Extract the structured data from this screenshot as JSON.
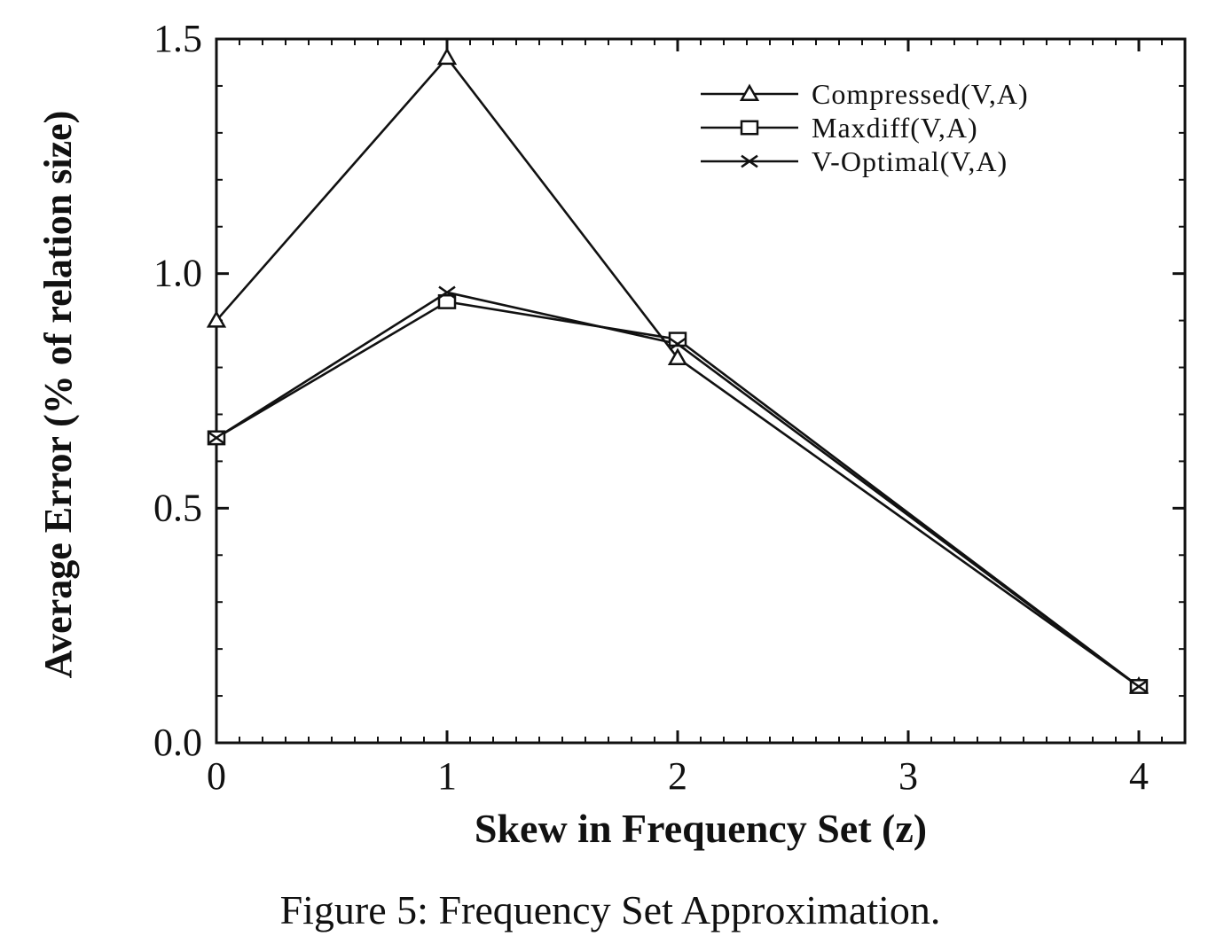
{
  "chart_data": {
    "type": "line",
    "x": [
      0,
      1,
      2,
      4
    ],
    "series": [
      {
        "name": "Compressed(V,A)",
        "marker": "triangle",
        "values": [
          0.9,
          1.46,
          0.82,
          0.12
        ]
      },
      {
        "name": "Maxdiff(V,A)",
        "marker": "square",
        "values": [
          0.65,
          0.94,
          0.86,
          0.12
        ]
      },
      {
        "name": "V-Optimal(V,A)",
        "marker": "x",
        "values": [
          0.65,
          0.96,
          0.85,
          0.12
        ]
      }
    ],
    "xlabel": "Skew in Frequency Set (z)",
    "ylabel": "Average Error (% of relation size)",
    "xlim": [
      0,
      4.2
    ],
    "ylim": [
      0,
      1.5
    ],
    "x_ticks": [
      0,
      1,
      2,
      3,
      4
    ],
    "x_tick_labels": [
      "0",
      "1",
      "2",
      "3",
      "4"
    ],
    "y_ticks": [
      0,
      0.5,
      1.0,
      1.5
    ],
    "y_tick_labels": [
      "0.0",
      "0.5",
      "1.0",
      "1.5"
    ],
    "grid": false,
    "legend_position": "top-right",
    "line_color": "#111111"
  },
  "caption": "Figure 5: Frequency Set Approximation."
}
